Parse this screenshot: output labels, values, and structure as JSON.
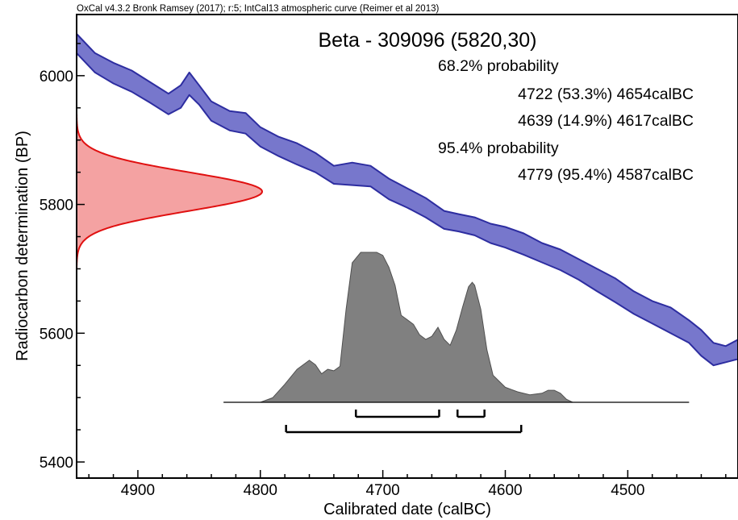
{
  "header": {
    "software_line": "OxCal v4.3.2 Bronk Ramsey (2017); r:5; IntCal13 atmospheric curve (Reimer et al 2013)",
    "sample_title": "Beta - 309096 (5820,30)"
  },
  "ranges_text": {
    "prob68_label": "68.2% probability",
    "range68_1": "4722 (53.3%) 4654calBC",
    "range68_2": "4639 (14.9%) 4617calBC",
    "prob95_label": "95.4% probability",
    "range95_1": "4779 (95.4%) 4587calBC"
  },
  "chart_data": {
    "type": "area",
    "xlabel": "Calibrated date (calBC)",
    "ylabel": "Radiocarbon determination (BP)",
    "xlim": [
      4950,
      4410
    ],
    "ylim": [
      5375,
      6095
    ],
    "x_ticks": [
      4900,
      4800,
      4700,
      4600,
      4500
    ],
    "x_tick_labels": [
      "4900",
      "4800",
      "4700",
      "4600",
      "4500"
    ],
    "y_ticks": [
      5400,
      5600,
      5800,
      6000
    ],
    "y_tick_labels": [
      "5400",
      "5600",
      "5800",
      "6000"
    ],
    "calibration_curve": {
      "color": "#7777cc",
      "edge_color": "#2d2da0",
      "x": [
        4950,
        4935,
        4920,
        4905,
        4890,
        4875,
        4865,
        4858,
        4850,
        4840,
        4825,
        4812,
        4800,
        4785,
        4770,
        4755,
        4740,
        4725,
        4710,
        4695,
        4680,
        4665,
        4650,
        4638,
        4625,
        4612,
        4600,
        4585,
        4570,
        4555,
        4540,
        4525,
        4510,
        4495,
        4480,
        4465,
        4450,
        4440,
        4430,
        4420,
        4410
      ],
      "bp_upper": [
        6065,
        6035,
        6020,
        6008,
        5990,
        5972,
        5985,
        6005,
        5985,
        5960,
        5945,
        5942,
        5920,
        5905,
        5895,
        5880,
        5860,
        5865,
        5860,
        5840,
        5825,
        5810,
        5790,
        5785,
        5780,
        5770,
        5765,
        5755,
        5740,
        5730,
        5715,
        5700,
        5685,
        5665,
        5650,
        5640,
        5620,
        5605,
        5585,
        5580,
        5590
      ],
      "bp_lower": [
        6035,
        6005,
        5988,
        5975,
        5958,
        5940,
        5950,
        5970,
        5955,
        5930,
        5915,
        5910,
        5890,
        5875,
        5862,
        5850,
        5832,
        5830,
        5828,
        5808,
        5795,
        5780,
        5762,
        5758,
        5752,
        5740,
        5733,
        5722,
        5710,
        5698,
        5683,
        5665,
        5648,
        5630,
        5615,
        5600,
        5585,
        5565,
        5550,
        5555,
        5560
      ]
    },
    "radiocarbon_date": {
      "mean_bp": 5820,
      "sigma_bp": 30,
      "color": "#f4a2a2",
      "edge_color": "#e01010"
    },
    "posterior": {
      "color": "#808080",
      "baseline_from": 4830,
      "baseline_to": 4450,
      "x": [
        4830,
        4800,
        4790,
        4780,
        4770,
        4760,
        4755,
        4750,
        4745,
        4740,
        4735,
        4730,
        4725,
        4718,
        4712,
        4705,
        4700,
        4695,
        4690,
        4685,
        4680,
        4675,
        4670,
        4665,
        4660,
        4655,
        4650,
        4645,
        4640,
        4635,
        4630,
        4627,
        4625,
        4620,
        4615,
        4610,
        4600,
        4590,
        4580,
        4570,
        4565,
        4560,
        4555,
        4550,
        4545,
        4450
      ],
      "density": [
        0,
        0,
        0.03,
        0.12,
        0.22,
        0.28,
        0.25,
        0.19,
        0.22,
        0.21,
        0.24,
        0.62,
        0.93,
        1.0,
        1.0,
        1.0,
        0.98,
        0.9,
        0.78,
        0.58,
        0.55,
        0.52,
        0.45,
        0.42,
        0.44,
        0.5,
        0.42,
        0.38,
        0.48,
        0.63,
        0.77,
        0.8,
        0.78,
        0.62,
        0.35,
        0.18,
        0.1,
        0.07,
        0.05,
        0.06,
        0.08,
        0.08,
        0.06,
        0.02,
        0,
        0
      ]
    },
    "range_bars": [
      {
        "level": "68.2%",
        "from": 4722,
        "to": 4654
      },
      {
        "level": "68.2%",
        "from": 4639,
        "to": 4617
      },
      {
        "level": "95.4%",
        "from": 4779,
        "to": 4587
      }
    ],
    "grid": false
  }
}
